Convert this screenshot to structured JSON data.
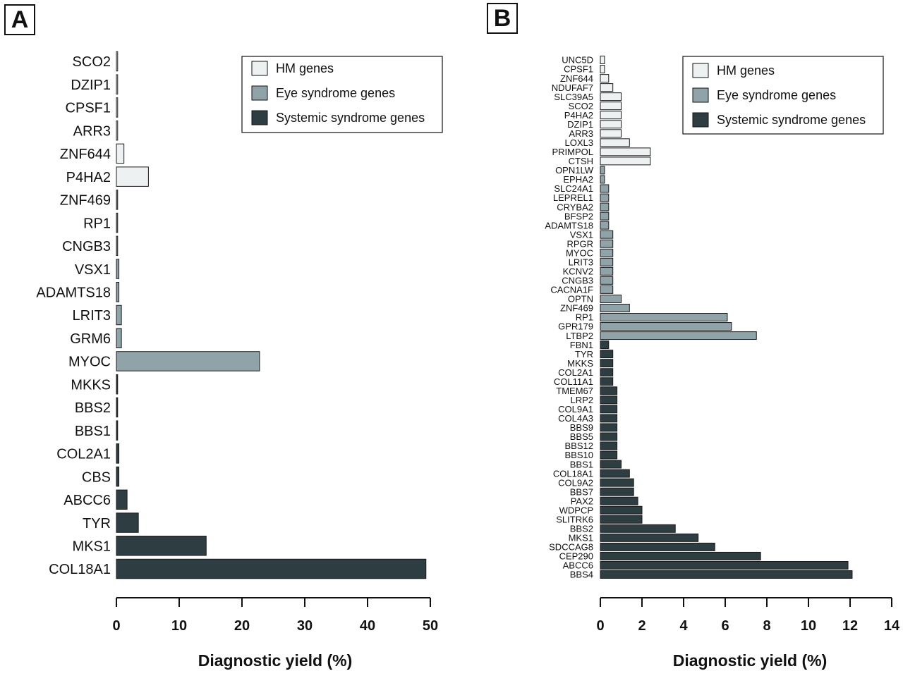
{
  "chart_data": [
    {
      "panel": "A",
      "type": "bar",
      "orientation": "horizontal",
      "xlabel": "Diagnostic yield  (%)",
      "xlim": [
        0,
        50
      ],
      "xticks": [
        0,
        10,
        20,
        30,
        40,
        50
      ],
      "legend": {
        "placement": "top-right",
        "entries": [
          "HM genes",
          "Eye syndrome genes",
          "Systemic syndrome genes"
        ]
      },
      "colors": {
        "HM genes": "#eef1f2",
        "Eye syndrome genes": "#8fa3a8",
        "Systemic syndrome genes": "#2e3d42"
      },
      "categories": [
        "SCO2",
        "DZIP1",
        "CPSF1",
        "ARR3",
        "ZNF644",
        "P4HA2",
        "ZNF469",
        "RP1",
        "CNGB3",
        "VSX1",
        "ADAMTS18",
        "LRIT3",
        "GRM6",
        "MYOC",
        "MKKS",
        "BBS2",
        "BBS1",
        "COL2A1",
        "CBS",
        "ABCC6",
        "TYR",
        "MKS1",
        "COL18A1"
      ],
      "values": [
        0.2,
        0.2,
        0.2,
        0.2,
        1.2,
        5.1,
        0.2,
        0.2,
        0.2,
        0.4,
        0.4,
        0.8,
        0.8,
        22.8,
        0.2,
        0.2,
        0.2,
        0.4,
        0.4,
        1.7,
        3.5,
        14.3,
        49.3
      ],
      "groups": [
        "HM genes",
        "HM genes",
        "HM genes",
        "HM genes",
        "HM genes",
        "HM genes",
        "Eye syndrome genes",
        "Eye syndrome genes",
        "Eye syndrome genes",
        "Eye syndrome genes",
        "Eye syndrome genes",
        "Eye syndrome genes",
        "Eye syndrome genes",
        "Eye syndrome genes",
        "Systemic syndrome genes",
        "Systemic syndrome genes",
        "Systemic syndrome genes",
        "Systemic syndrome genes",
        "Systemic syndrome genes",
        "Systemic syndrome genes",
        "Systemic syndrome genes",
        "Systemic syndrome genes",
        "Systemic syndrome genes"
      ]
    },
    {
      "panel": "B",
      "type": "bar",
      "orientation": "horizontal",
      "xlabel": "Diagnostic yield  (%)",
      "xlim": [
        0,
        14
      ],
      "xticks": [
        0,
        2,
        4,
        6,
        8,
        10,
        12,
        14
      ],
      "legend": {
        "placement": "top-right",
        "entries": [
          "HM genes",
          "Eye syndrome genes",
          "Systemic syndrome genes"
        ]
      },
      "colors": {
        "HM genes": "#eef1f2",
        "Eye syndrome genes": "#8fa3a8",
        "Systemic syndrome genes": "#2e3d42"
      },
      "categories": [
        "UNC5D",
        "CPSF1",
        "ZNF644",
        "NDUFAF7",
        "SLC39A5",
        "SCO2",
        "P4HA2",
        "DZIP1",
        "ARR3",
        "LOXL3",
        "PRIMPOL",
        "CTSH",
        "OPN1LW",
        "EPHA2",
        "SLC24A1",
        "LEPREL1",
        "CRYBA2",
        "BFSP2",
        "ADAMTS18",
        "VSX1",
        "RPGR",
        "MYOC",
        "LRIT3",
        "KCNV2",
        "CNGB3",
        "CACNA1F",
        "OPTN",
        "ZNF469",
        "RP1",
        "GPR179",
        "LTBP2",
        "FBN1",
        "TYR",
        "MKKS",
        "COL2A1",
        "COL11A1",
        "TMEM67",
        "LRP2",
        "COL9A1",
        "COL4A3",
        "BBS9",
        "BBS5",
        "BBS12",
        "BBS10",
        "BBS1",
        "COL18A1",
        "COL9A2",
        "BBS7",
        "PAX2",
        "WDPCP",
        "SLITRK6",
        "BBS2",
        "MKS1",
        "SDCCAG8",
        "CEP290",
        "ABCC6",
        "BBS4"
      ],
      "values": [
        0.2,
        0.2,
        0.4,
        0.6,
        1.0,
        1.0,
        1.0,
        1.0,
        1.0,
        1.4,
        2.4,
        2.4,
        0.2,
        0.2,
        0.4,
        0.4,
        0.4,
        0.4,
        0.4,
        0.6,
        0.6,
        0.6,
        0.6,
        0.6,
        0.6,
        0.6,
        1.0,
        1.4,
        6.1,
        6.3,
        7.5,
        0.4,
        0.6,
        0.6,
        0.6,
        0.6,
        0.8,
        0.8,
        0.8,
        0.8,
        0.8,
        0.8,
        0.8,
        0.8,
        1.0,
        1.4,
        1.6,
        1.6,
        1.8,
        2.0,
        2.0,
        3.6,
        4.7,
        5.5,
        7.7,
        11.9,
        12.1
      ],
      "groups": [
        "HM genes",
        "HM genes",
        "HM genes",
        "HM genes",
        "HM genes",
        "HM genes",
        "HM genes",
        "HM genes",
        "HM genes",
        "HM genes",
        "HM genes",
        "HM genes",
        "Eye syndrome genes",
        "Eye syndrome genes",
        "Eye syndrome genes",
        "Eye syndrome genes",
        "Eye syndrome genes",
        "Eye syndrome genes",
        "Eye syndrome genes",
        "Eye syndrome genes",
        "Eye syndrome genes",
        "Eye syndrome genes",
        "Eye syndrome genes",
        "Eye syndrome genes",
        "Eye syndrome genes",
        "Eye syndrome genes",
        "Eye syndrome genes",
        "Eye syndrome genes",
        "Eye syndrome genes",
        "Eye syndrome genes",
        "Eye syndrome genes",
        "Systemic syndrome genes",
        "Systemic syndrome genes",
        "Systemic syndrome genes",
        "Systemic syndrome genes",
        "Systemic syndrome genes",
        "Systemic syndrome genes",
        "Systemic syndrome genes",
        "Systemic syndrome genes",
        "Systemic syndrome genes",
        "Systemic syndrome genes",
        "Systemic syndrome genes",
        "Systemic syndrome genes",
        "Systemic syndrome genes",
        "Systemic syndrome genes",
        "Systemic syndrome genes",
        "Systemic syndrome genes",
        "Systemic syndrome genes",
        "Systemic syndrome genes",
        "Systemic syndrome genes",
        "Systemic syndrome genes",
        "Systemic syndrome genes",
        "Systemic syndrome genes",
        "Systemic syndrome genes",
        "Systemic syndrome genes",
        "Systemic syndrome genes",
        "Systemic syndrome genes"
      ]
    }
  ]
}
